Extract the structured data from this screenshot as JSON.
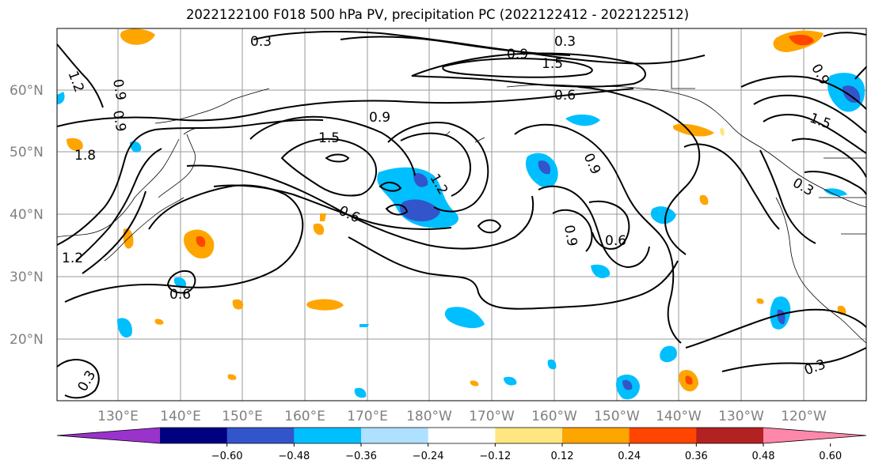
{
  "title": "2022122100 F018 500 hPa PV, precipitation PC (2022122412 - 2022122512)",
  "lat_labels": [
    "60°N",
    "50°N",
    "40°N",
    "30°N",
    "20°N"
  ],
  "lon_labels": [
    "130°E",
    "140°E",
    "150°E",
    "160°E",
    "170°E",
    "180°W",
    "170°W",
    "160°W",
    "150°W",
    "140°W",
    "130°W",
    "120°W"
  ],
  "colorbar": {
    "ticks": [
      "−0.60",
      "−0.48",
      "−0.36",
      "−0.24",
      "−0.12",
      "0.12",
      "0.24",
      "0.36",
      "0.48",
      "0.60"
    ],
    "colors": [
      "#9933cc",
      "#000080",
      "#3355cc",
      "#00bfff",
      "#aee0ff",
      "#ffffff",
      "#ffe680",
      "#ffa500",
      "#ff4500",
      "#b22222",
      "#ff88aa"
    ]
  },
  "contour_labels": [
    "0.3",
    "0.3",
    "0.9",
    "1.5",
    "1.2",
    "0.9",
    "0.6",
    "0.9",
    "0.9",
    "1.5",
    "1.2",
    "0.6",
    "0.9",
    "0.6",
    "0.9",
    "0.6",
    "1.8",
    "1.2",
    "1.5",
    "0.3",
    "0.3",
    "0.3",
    "0.9"
  ]
}
